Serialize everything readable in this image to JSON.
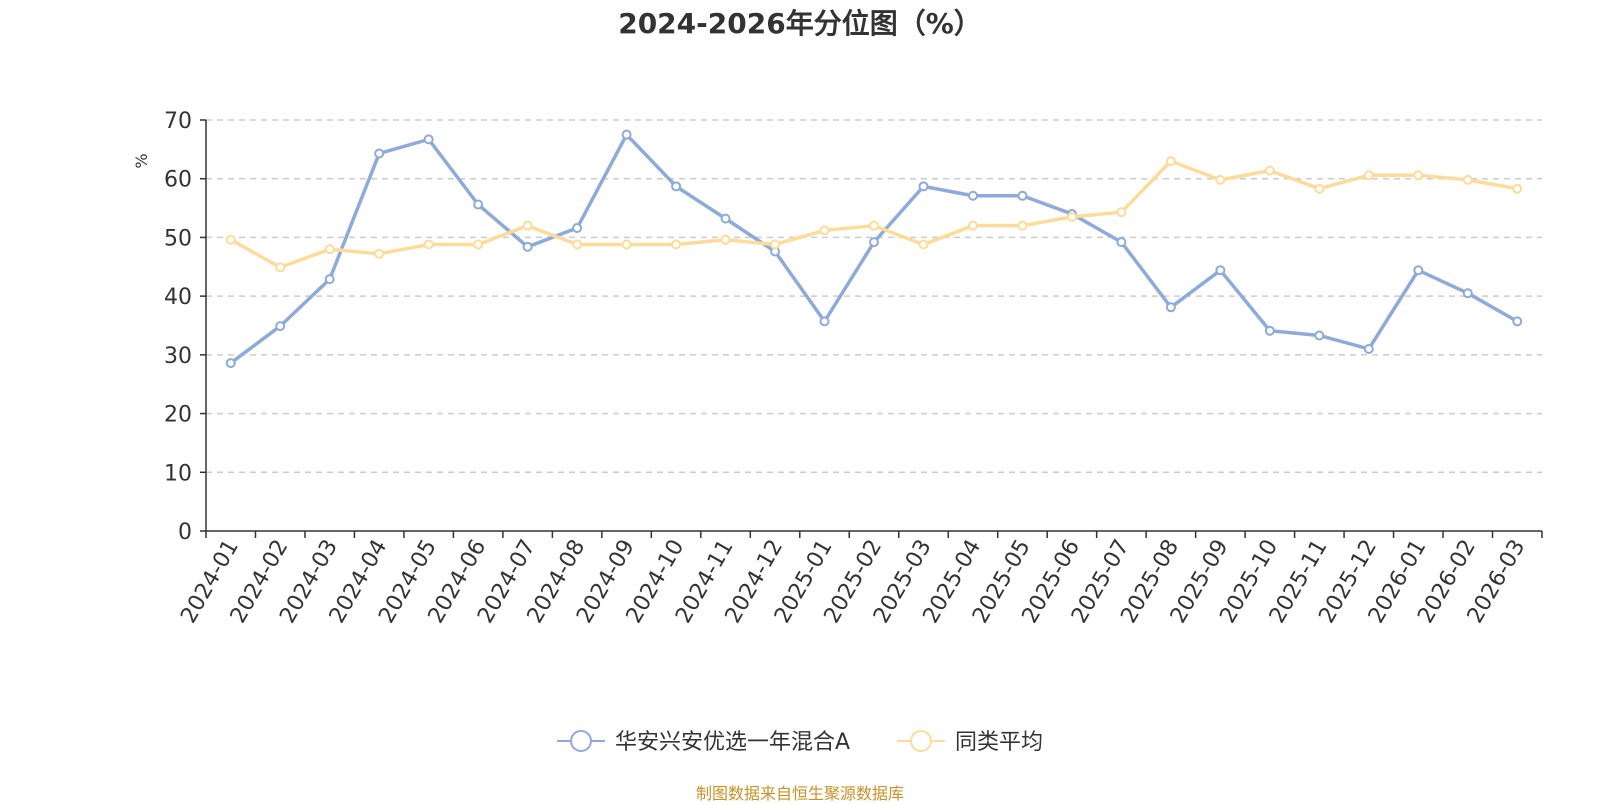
{
  "title": "2024-2026年分位图（%）",
  "source": "制图数据来自恒生聚源数据库",
  "chart_data": {
    "type": "line",
    "title": "2024-2026年分位图（%）",
    "ylabel": "%",
    "xlabel": "",
    "ylim": [
      0,
      70
    ],
    "yticks": [
      0,
      10,
      20,
      30,
      40,
      50,
      60,
      70
    ],
    "grid": true,
    "legend_position": "bottom-center",
    "categories": [
      "2024-01",
      "2024-02",
      "2024-03",
      "2024-04",
      "2024-05",
      "2024-06",
      "2024-07",
      "2024-08",
      "2024-09",
      "2024-10",
      "2024-11",
      "2024-12",
      "2025-01",
      "2025-02",
      "2025-03",
      "2025-04",
      "2025-05",
      "2025-06",
      "2025-07",
      "2025-08",
      "2025-09",
      "2025-10",
      "2025-11",
      "2025-12",
      "2026-01",
      "2026-02",
      "2026-03"
    ],
    "series": [
      {
        "name": "华安兴安优选一年混合A",
        "color": "#8eaad8",
        "values": [
          28.6,
          34.9,
          42.9,
          64.3,
          66.7,
          55.6,
          48.4,
          51.6,
          67.5,
          58.7,
          53.2,
          47.6,
          35.7,
          49.2,
          58.7,
          57.1,
          57.1,
          54.0,
          49.2,
          38.1,
          44.4,
          34.1,
          33.3,
          31.0,
          44.4,
          40.5,
          35.7
        ]
      },
      {
        "name": "同类平均",
        "color": "#fddb9a",
        "values": [
          49.6,
          44.9,
          48.0,
          47.2,
          48.8,
          48.8,
          52.0,
          48.8,
          48.8,
          48.8,
          49.6,
          48.8,
          51.2,
          52.0,
          48.8,
          52.0,
          52.0,
          53.5,
          54.3,
          63.0,
          59.8,
          61.4,
          58.3,
          60.6,
          60.6,
          59.8,
          58.3
        ]
      }
    ]
  }
}
